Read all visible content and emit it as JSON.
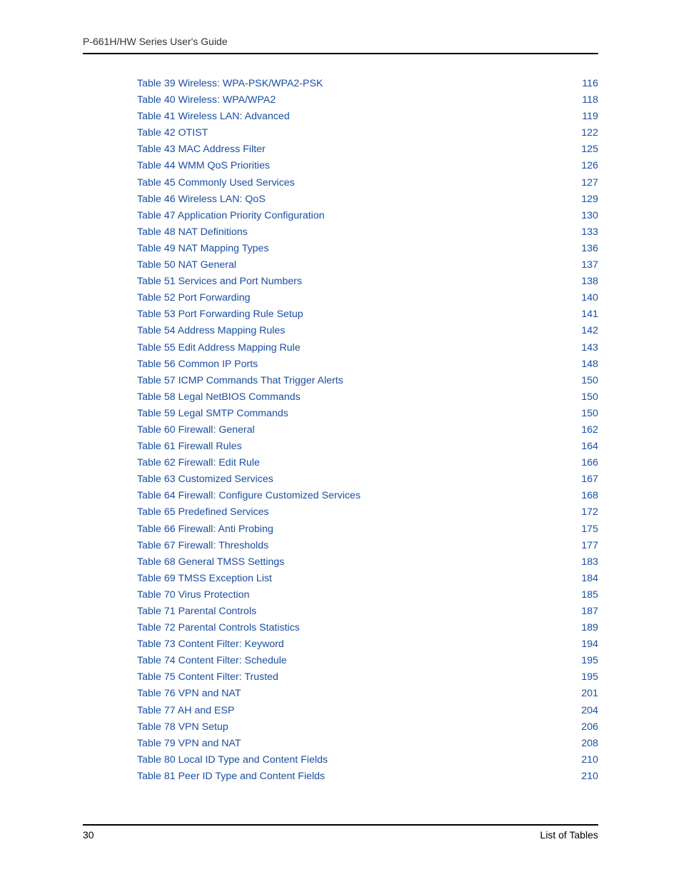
{
  "header": {
    "title": "P-661H/HW Series User's Guide"
  },
  "colors": {
    "link": "#1a4ea0",
    "text": "#000000",
    "background": "#ffffff",
    "rule": "#000000"
  },
  "typography": {
    "body_family": "Arial, Helvetica, sans-serif",
    "entry_fontsize": 14.2,
    "header_fontsize": 14,
    "footer_fontsize": 14
  },
  "toc": {
    "entries": [
      {
        "label": "Table 39 Wireless: WPA-PSK/WPA2-PSK",
        "page": "116"
      },
      {
        "label": "Table 40 Wireless: WPA/WPA2",
        "page": "118"
      },
      {
        "label": "Table 41 Wireless LAN: Advanced",
        "page": "119"
      },
      {
        "label": "Table 42 OTIST",
        "page": "122"
      },
      {
        "label": "Table 43 MAC Address Filter",
        "page": "125"
      },
      {
        "label": "Table 44 WMM QoS Priorities",
        "page": "126"
      },
      {
        "label": "Table 45 Commonly Used Services",
        "page": "127"
      },
      {
        "label": "Table 46 Wireless LAN: QoS",
        "page": "129"
      },
      {
        "label": "Table 47 Application Priority Configuration",
        "page": "130"
      },
      {
        "label": "Table 48 NAT Definitions",
        "page": "133"
      },
      {
        "label": "Table 49 NAT Mapping Types",
        "page": "136"
      },
      {
        "label": "Table 50 NAT General",
        "page": "137"
      },
      {
        "label": "Table 51 Services and Port Numbers",
        "page": "138"
      },
      {
        "label": "Table 52 Port Forwarding",
        "page": "140"
      },
      {
        "label": "Table 53 Port Forwarding Rule Setup",
        "page": "141"
      },
      {
        "label": "Table 54 Address Mapping Rules",
        "page": "142"
      },
      {
        "label": "Table 55 Edit Address Mapping Rule",
        "page": "143"
      },
      {
        "label": "Table 56 Common IP Ports",
        "page": "148"
      },
      {
        "label": "Table 57 ICMP Commands That Trigger Alerts",
        "page": "150"
      },
      {
        "label": "Table 58 Legal NetBIOS Commands",
        "page": "150"
      },
      {
        "label": "Table 59 Legal SMTP Commands",
        "page": "150"
      },
      {
        "label": "Table 60 Firewall: General",
        "page": "162"
      },
      {
        "label": "Table 61 Firewall Rules",
        "page": "164"
      },
      {
        "label": "Table 62 Firewall: Edit Rule",
        "page": "166"
      },
      {
        "label": "Table 63 Customized Services",
        "page": "167"
      },
      {
        "label": "Table 64 Firewall: Configure Customized Services",
        "page": "168"
      },
      {
        "label": "Table 65 Predefined Services",
        "page": "172"
      },
      {
        "label": "Table 66 Firewall: Anti Probing",
        "page": "175"
      },
      {
        "label": "Table 67 Firewall: Thresholds",
        "page": "177"
      },
      {
        "label": "Table 68 General TMSS Settings",
        "page": "183"
      },
      {
        "label": "Table 69 TMSS Exception List",
        "page": "184"
      },
      {
        "label": "Table 70 Virus Protection",
        "page": "185"
      },
      {
        "label": "Table 71 Parental Controls",
        "page": "187"
      },
      {
        "label": "Table 72 Parental Controls Statistics",
        "page": "189"
      },
      {
        "label": "Table 73 Content Filter: Keyword",
        "page": "194"
      },
      {
        "label": "Table 74 Content Filter: Schedule",
        "page": "195"
      },
      {
        "label": "Table 75 Content Filter: Trusted",
        "page": "195"
      },
      {
        "label": "Table 76 VPN and NAT",
        "page": "201"
      },
      {
        "label": "Table 77 AH and ESP",
        "page": "204"
      },
      {
        "label": "Table 78 VPN Setup",
        "page": "206"
      },
      {
        "label": "Table 79 VPN and NAT",
        "page": "208"
      },
      {
        "label": "Table 80 Local ID Type and Content Fields",
        "page": "210"
      },
      {
        "label": "Table 81 Peer ID Type and Content Fields",
        "page": "210"
      }
    ]
  },
  "footer": {
    "page_number": "30",
    "section": "List of Tables"
  }
}
